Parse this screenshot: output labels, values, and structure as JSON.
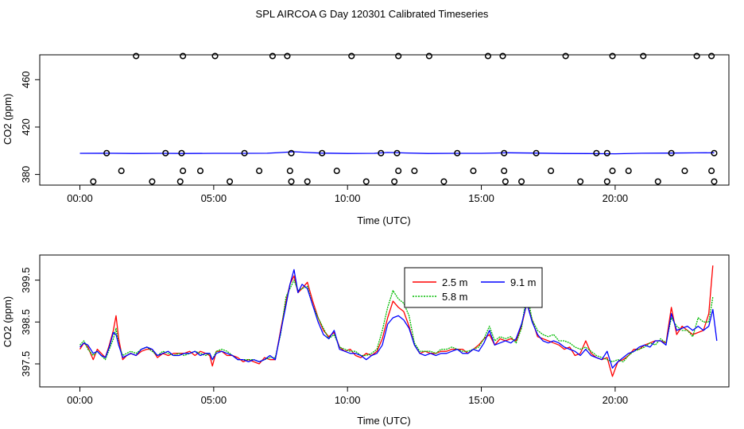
{
  "title": "SPL AIRCOA G  Day 120301  Calibrated Timeseries",
  "chart_data": [
    {
      "type": "line",
      "name": "top-panel",
      "xlabel": "Time (UTC)",
      "ylabel": "CO2 (ppm)",
      "xlim": [
        -1.5,
        24.25
      ],
      "ylim": [
        371,
        481
      ],
      "xticks": [
        0,
        5,
        10,
        15,
        20
      ],
      "xtick_labels": [
        "00:00",
        "05:00",
        "10:00",
        "15:00",
        "20:00"
      ],
      "yticks": [
        380,
        420,
        460
      ],
      "ytick_labels": [
        "380",
        "420",
        "460"
      ],
      "series": [
        {
          "name": "CO2",
          "color": "#0000ff",
          "x": [
            0,
            1,
            2,
            3,
            4,
            5,
            6,
            7,
            7.5,
            8,
            8.5,
            9,
            10,
            11,
            11.5,
            12,
            13,
            14,
            15,
            16,
            17,
            18,
            19,
            20,
            21,
            22,
            23,
            23.7
          ],
          "y": [
            397.8,
            397.9,
            397.7,
            397.8,
            397.7,
            397.8,
            397.8,
            397.9,
            398.5,
            399.2,
            398.6,
            398.0,
            397.7,
            397.8,
            398.6,
            398.2,
            397.7,
            397.8,
            397.8,
            398.3,
            398.0,
            397.7,
            397.6,
            397.4,
            397.9,
            398.0,
            398.2,
            398.3
          ]
        }
      ],
      "markers": {
        "symbol": "open-circle",
        "row_480": [
          2.1,
          3.85,
          5.05,
          7.2,
          7.75,
          10.15,
          11.9,
          13.05,
          15.25,
          15.8,
          18.15,
          19.9,
          21.05,
          23.05,
          23.6
        ],
        "row_398": [
          1.0,
          3.2,
          3.8,
          6.15,
          7.9,
          9.05,
          11.25,
          11.85,
          14.1,
          15.85,
          17.05,
          19.3,
          19.7,
          22.1,
          23.7
        ],
        "row_383": [
          1.55,
          3.85,
          4.5,
          6.7,
          7.85,
          9.6,
          11.9,
          12.5,
          14.7,
          15.85,
          17.6,
          19.9,
          20.5,
          22.6,
          23.6
        ],
        "row_374": [
          0.5,
          2.7,
          3.75,
          5.6,
          7.9,
          8.5,
          10.7,
          11.75,
          13.6,
          15.9,
          16.5,
          18.7,
          19.7,
          21.6,
          23.7
        ],
        "y_values": [
          480,
          398,
          383,
          374
        ]
      }
    },
    {
      "type": "line",
      "name": "bottom-panel",
      "xlabel": "Time (UTC)",
      "ylabel": "CO2 (ppm)",
      "xlim": [
        -1.5,
        24.25
      ],
      "ylim": [
        396.95,
        400.1
      ],
      "xticks": [
        0,
        5,
        10,
        15,
        20
      ],
      "xtick_labels": [
        "00:00",
        "05:00",
        "10:00",
        "15:00",
        "20:00"
      ],
      "yticks": [
        397.5,
        398.5,
        399.5
      ],
      "ytick_labels": [
        "397.5",
        "398.5",
        "399.5"
      ],
      "legend": {
        "placement": "top-center",
        "entries": [
          {
            "label": "2.5 m",
            "color": "#ff0000",
            "dash": "solid"
          },
          {
            "label": "9.1 m",
            "color": "#0000ff",
            "dash": "solid"
          },
          {
            "label": "5.8 m",
            "color": "#00bb00",
            "dash": "dotted"
          }
        ]
      },
      "series": [
        {
          "name": "2.5 m",
          "color": "#ff0000",
          "x": [
            0,
            0.15,
            0.3,
            0.5,
            0.65,
            0.8,
            0.95,
            1.1,
            1.25,
            1.35,
            1.45,
            1.6,
            1.75,
            1.9,
            2.1,
            2.3,
            2.5,
            2.7,
            2.9,
            3.1,
            3.3,
            3.5,
            3.7,
            3.9,
            4.1,
            4.3,
            4.5,
            4.7,
            4.85,
            4.95,
            5.1,
            5.3,
            5.5,
            5.7,
            5.9,
            6.1,
            6.3,
            6.5,
            6.7,
            6.9,
            7.1,
            7.3,
            7.5,
            7.7,
            7.85,
            8.0,
            8.15,
            8.3,
            8.5,
            8.7,
            8.9,
            9.1,
            9.3,
            9.5,
            9.7,
            9.9,
            10.1,
            10.3,
            10.5,
            10.7,
            10.9,
            11.1,
            11.3,
            11.5,
            11.7,
            11.9,
            12.1,
            12.3,
            12.5,
            12.7,
            12.9,
            13.1,
            13.3,
            13.5,
            13.7,
            13.9,
            14.1,
            14.3,
            14.5,
            14.7,
            14.9,
            15.1,
            15.3,
            15.5,
            15.7,
            15.9,
            16.1,
            16.3,
            16.5,
            16.7,
            16.9,
            17.1,
            17.3,
            17.5,
            17.7,
            17.9,
            18.1,
            18.3,
            18.5,
            18.7,
            18.9,
            19.1,
            19.3,
            19.5,
            19.7,
            19.9,
            20.1,
            20.3,
            20.5,
            20.7,
            20.9,
            21.1,
            21.3,
            21.5,
            21.7,
            21.9,
            22.1,
            22.3,
            22.5,
            22.7,
            22.9,
            23.1,
            23.3,
            23.5,
            23.65
          ],
          "y": [
            397.85,
            398.0,
            397.9,
            397.6,
            397.85,
            397.75,
            397.65,
            397.95,
            398.3,
            398.65,
            398.1,
            397.6,
            397.7,
            397.75,
            397.7,
            397.8,
            397.85,
            397.85,
            397.65,
            397.75,
            397.7,
            397.75,
            397.75,
            397.75,
            397.8,
            397.7,
            397.8,
            397.75,
            397.7,
            397.45,
            397.8,
            397.8,
            397.7,
            397.7,
            397.65,
            397.55,
            397.6,
            397.55,
            397.5,
            397.65,
            397.6,
            397.6,
            398.3,
            399.0,
            399.4,
            399.6,
            399.2,
            399.3,
            399.45,
            399.0,
            398.6,
            398.3,
            398.15,
            398.25,
            397.9,
            397.8,
            397.85,
            397.7,
            397.65,
            397.75,
            397.7,
            397.8,
            398.1,
            398.6,
            399.0,
            398.85,
            398.75,
            398.4,
            397.95,
            397.75,
            397.8,
            397.75,
            397.75,
            397.8,
            397.8,
            397.85,
            397.85,
            397.85,
            397.75,
            397.85,
            397.95,
            398.1,
            398.2,
            397.95,
            398.1,
            398.05,
            398.1,
            398.05,
            398.4,
            398.95,
            398.55,
            398.15,
            398.1,
            398.05,
            398.0,
            397.95,
            397.85,
            397.9,
            397.7,
            397.75,
            398.05,
            397.75,
            397.65,
            397.6,
            397.65,
            397.2,
            397.55,
            397.6,
            397.7,
            397.85,
            397.85,
            397.95,
            398.0,
            398.05,
            398.05,
            398.0,
            398.85,
            398.2,
            398.4,
            398.3,
            398.2,
            398.25,
            398.3,
            398.7,
            399.85
          ]
        },
        {
          "name": "5.8 m",
          "color": "#00bb00",
          "x": [
            0,
            0.15,
            0.3,
            0.5,
            0.65,
            0.8,
            0.95,
            1.1,
            1.25,
            1.35,
            1.45,
            1.6,
            1.75,
            1.9,
            2.1,
            2.3,
            2.5,
            2.7,
            2.9,
            3.1,
            3.3,
            3.5,
            3.7,
            3.9,
            4.1,
            4.3,
            4.5,
            4.7,
            4.85,
            4.95,
            5.1,
            5.3,
            5.5,
            5.7,
            5.9,
            6.1,
            6.3,
            6.5,
            6.7,
            6.9,
            7.1,
            7.3,
            7.5,
            7.7,
            7.85,
            8.0,
            8.15,
            8.3,
            8.5,
            8.7,
            8.9,
            9.1,
            9.3,
            9.5,
            9.7,
            9.9,
            10.1,
            10.3,
            10.5,
            10.7,
            10.9,
            11.1,
            11.3,
            11.5,
            11.7,
            11.9,
            12.1,
            12.3,
            12.5,
            12.7,
            12.9,
            13.1,
            13.3,
            13.5,
            13.7,
            13.9,
            14.1,
            14.3,
            14.5,
            14.7,
            14.9,
            15.1,
            15.3,
            15.5,
            15.7,
            15.9,
            16.1,
            16.3,
            16.5,
            16.7,
            16.9,
            17.1,
            17.3,
            17.5,
            17.7,
            17.9,
            18.1,
            18.3,
            18.5,
            18.7,
            18.9,
            19.1,
            19.3,
            19.5,
            19.7,
            19.9,
            20.1,
            20.3,
            20.5,
            20.7,
            20.9,
            21.1,
            21.3,
            21.5,
            21.7,
            21.9,
            22.1,
            22.3,
            22.5,
            22.7,
            22.9,
            23.1,
            23.3,
            23.5,
            23.65
          ],
          "y": [
            397.95,
            398.05,
            397.85,
            397.7,
            397.8,
            397.7,
            397.6,
            397.85,
            398.1,
            398.35,
            397.95,
            397.7,
            397.75,
            397.8,
            397.75,
            397.85,
            397.9,
            397.8,
            397.7,
            397.8,
            397.75,
            397.7,
            397.75,
            397.7,
            397.75,
            397.8,
            397.75,
            397.7,
            397.75,
            397.6,
            397.8,
            397.85,
            397.8,
            397.7,
            397.6,
            397.6,
            397.6,
            397.6,
            397.55,
            397.6,
            397.65,
            397.65,
            398.2,
            399.1,
            399.3,
            399.5,
            399.25,
            399.3,
            399.35,
            398.9,
            398.6,
            398.35,
            398.1,
            398.2,
            397.9,
            397.85,
            397.8,
            397.8,
            397.7,
            397.7,
            397.75,
            397.85,
            398.3,
            398.85,
            399.25,
            399.05,
            398.95,
            398.65,
            398.0,
            397.8,
            397.8,
            397.8,
            397.75,
            397.85,
            397.85,
            397.9,
            397.85,
            397.8,
            397.8,
            397.85,
            397.9,
            398.1,
            398.4,
            398.05,
            398.15,
            398.1,
            398.15,
            398.0,
            398.35,
            399.2,
            398.55,
            398.3,
            398.2,
            398.15,
            398.2,
            398.05,
            398.05,
            398.0,
            397.9,
            397.85,
            397.9,
            397.8,
            397.7,
            397.65,
            397.6,
            397.55,
            397.6,
            397.55,
            397.7,
            397.8,
            397.85,
            397.9,
            398.0,
            397.95,
            398.1,
            398.0,
            398.6,
            398.4,
            398.3,
            398.3,
            398.15,
            398.6,
            398.5,
            398.5,
            399.1
          ]
        },
        {
          "name": "9.1 m",
          "color": "#0000ff",
          "x": [
            0,
            0.15,
            0.3,
            0.5,
            0.65,
            0.8,
            0.95,
            1.1,
            1.25,
            1.35,
            1.45,
            1.6,
            1.75,
            1.9,
            2.1,
            2.3,
            2.5,
            2.7,
            2.9,
            3.1,
            3.3,
            3.5,
            3.7,
            3.9,
            4.1,
            4.3,
            4.5,
            4.7,
            4.85,
            4.95,
            5.1,
            5.3,
            5.5,
            5.7,
            5.9,
            6.1,
            6.3,
            6.5,
            6.7,
            6.9,
            7.1,
            7.3,
            7.5,
            7.7,
            7.85,
            8.0,
            8.15,
            8.3,
            8.5,
            8.7,
            8.9,
            9.1,
            9.3,
            9.5,
            9.7,
            9.9,
            10.1,
            10.3,
            10.5,
            10.7,
            10.9,
            11.1,
            11.3,
            11.5,
            11.7,
            11.9,
            12.1,
            12.3,
            12.5,
            12.7,
            12.9,
            13.1,
            13.3,
            13.5,
            13.7,
            13.9,
            14.1,
            14.3,
            14.5,
            14.7,
            14.9,
            15.1,
            15.3,
            15.5,
            15.7,
            15.9,
            16.1,
            16.3,
            16.5,
            16.7,
            16.9,
            17.1,
            17.3,
            17.5,
            17.7,
            17.9,
            18.1,
            18.3,
            18.5,
            18.7,
            18.9,
            19.1,
            19.3,
            19.5,
            19.7,
            19.9,
            20.1,
            20.3,
            20.5,
            20.7,
            20.9,
            21.1,
            21.3,
            21.5,
            21.7,
            21.9,
            22.1,
            22.3,
            22.5,
            22.7,
            22.9,
            23.1,
            23.3,
            23.5,
            23.65,
            23.8
          ],
          "y": [
            397.9,
            398.0,
            397.95,
            397.75,
            397.8,
            397.7,
            397.65,
            397.9,
            398.25,
            398.2,
            397.95,
            397.65,
            397.7,
            397.75,
            397.7,
            397.85,
            397.9,
            397.85,
            397.7,
            397.75,
            397.8,
            397.7,
            397.7,
            397.75,
            397.75,
            397.8,
            397.7,
            397.75,
            397.75,
            397.6,
            397.75,
            397.8,
            397.75,
            397.7,
            397.6,
            397.6,
            397.55,
            397.6,
            397.55,
            397.6,
            397.7,
            397.6,
            398.25,
            398.9,
            399.4,
            399.75,
            399.2,
            399.4,
            399.3,
            398.9,
            398.5,
            398.2,
            398.1,
            398.3,
            397.85,
            397.8,
            397.75,
            397.75,
            397.7,
            397.6,
            397.7,
            397.75,
            397.95,
            398.45,
            398.6,
            398.65,
            398.55,
            398.35,
            397.95,
            397.75,
            397.7,
            397.75,
            397.7,
            397.75,
            397.75,
            397.8,
            397.85,
            397.75,
            397.75,
            397.85,
            397.8,
            398.0,
            398.3,
            397.95,
            398.0,
            398.05,
            398.0,
            398.1,
            398.45,
            398.95,
            398.5,
            398.2,
            398.05,
            398.0,
            398.05,
            398.0,
            397.9,
            397.85,
            397.8,
            397.7,
            397.85,
            397.7,
            397.65,
            397.6,
            397.8,
            397.4,
            397.55,
            397.65,
            397.75,
            397.8,
            397.9,
            397.95,
            397.9,
            398.05,
            398.05,
            397.95,
            398.7,
            398.3,
            398.35,
            398.4,
            398.3,
            398.4,
            398.3,
            398.4,
            398.8,
            398.05
          ]
        }
      ]
    }
  ]
}
